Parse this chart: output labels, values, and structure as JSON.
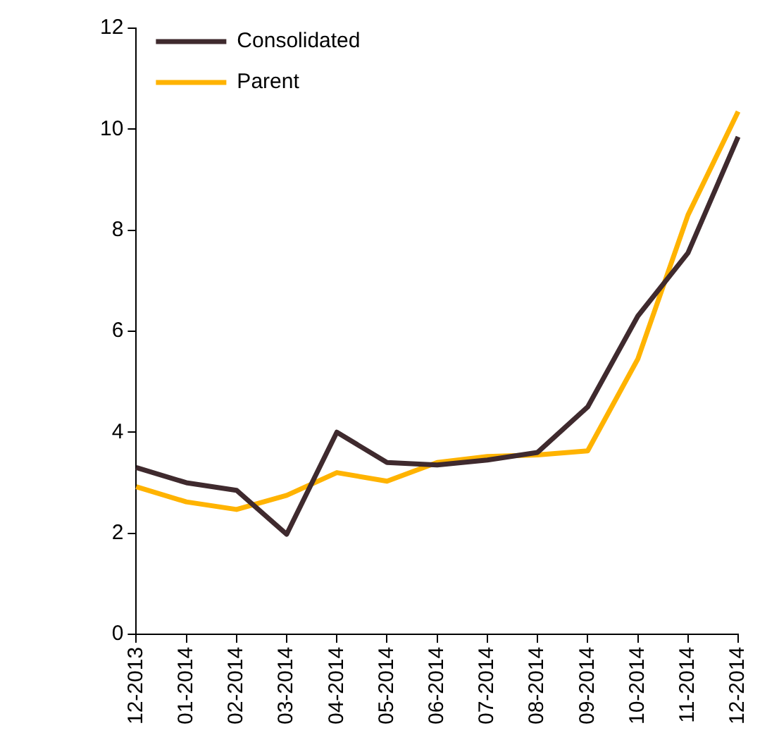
{
  "chart_data": {
    "type": "line",
    "categories": [
      "12-2013",
      "01-2014",
      "02-2014",
      "03-2014",
      "04-2014",
      "05-2014",
      "06-2014",
      "07-2014",
      "08-2014",
      "09-2014",
      "10-2014",
      "11-2014",
      "12-2014"
    ],
    "series": [
      {
        "name": "Consolidated",
        "color": "#3f2a2e",
        "values": [
          3.3,
          3.0,
          2.85,
          1.98,
          4.0,
          3.4,
          3.35,
          3.45,
          3.6,
          4.5,
          6.3,
          7.55,
          9.85
        ]
      },
      {
        "name": "Parent",
        "color": "#ffb300",
        "values": [
          2.92,
          2.62,
          2.47,
          2.75,
          3.2,
          3.03,
          3.4,
          3.52,
          3.55,
          3.63,
          5.45,
          8.3,
          10.35
        ]
      }
    ],
    "ylim": [
      0,
      12
    ],
    "yticks": [
      0,
      2,
      4,
      6,
      8,
      10,
      12
    ],
    "grid": false,
    "legend": "top left",
    "marker": "none",
    "line_style": "solid"
  }
}
